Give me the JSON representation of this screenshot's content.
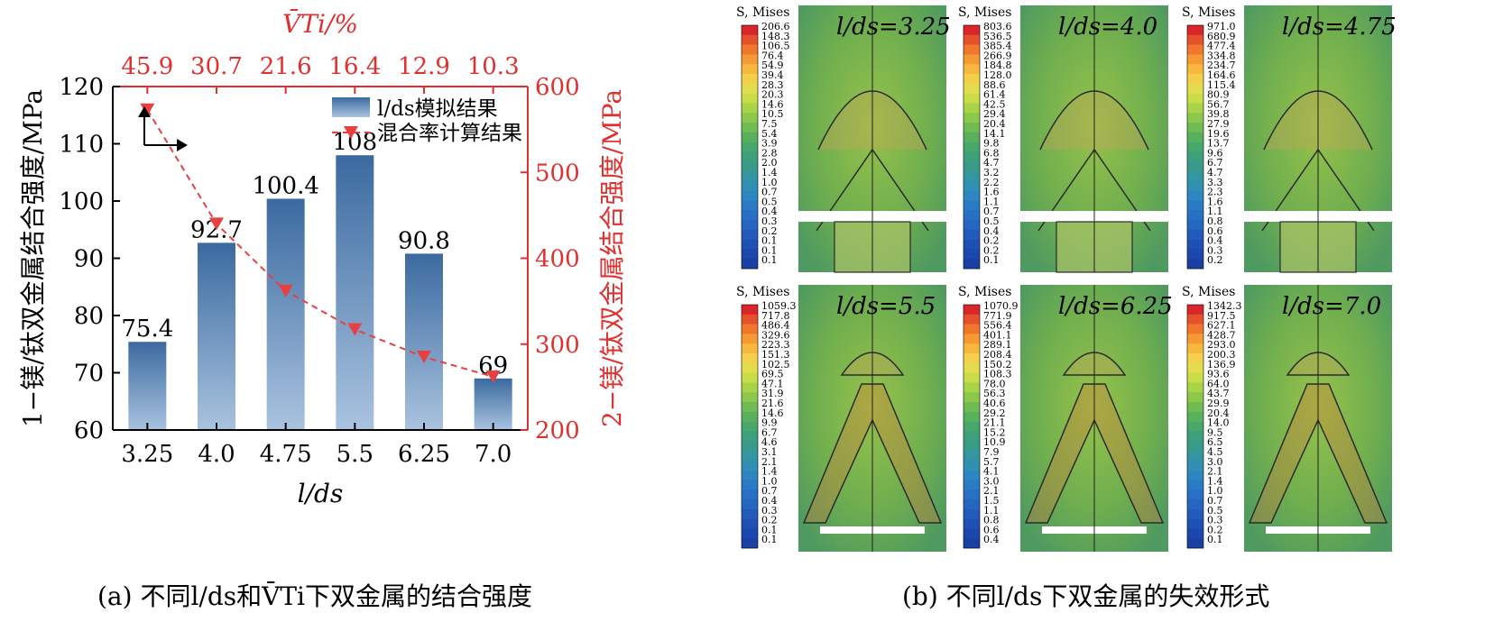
{
  "chart_data": [
    {
      "type": "bar",
      "categories": [
        "3.25",
        "4.0",
        "4.75",
        "5.5",
        "6.25",
        "7.0"
      ],
      "series": [
        {
          "name": "l/ds模拟结果",
          "axis": "left",
          "values": [
            75.4,
            92.7,
            100.4,
            108,
            90.8,
            69
          ],
          "data_labels": [
            "75.4",
            "92.7",
            "100.4",
            "108",
            "90.8",
            "69"
          ]
        },
        {
          "name": "混合率计算结果",
          "axis": "right",
          "type": "line",
          "style": "dashed",
          "marker": "triangle-down",
          "values": [
            573,
            440,
            362,
            317,
            285,
            262
          ]
        }
      ],
      "xlabel": "l/ds",
      "ylabel_left": "1−镁/钛双金属结合强度/MPa",
      "ylabel_right": "2−镁/钛双金属结合强度/MPa",
      "ylim_left": [
        60,
        120
      ],
      "yticks_left": [
        "60",
        "70",
        "80",
        "90",
        "100",
        "110",
        "120"
      ],
      "ylim_right": [
        200,
        600
      ],
      "yticks_right": [
        "200",
        "300",
        "400",
        "500",
        "600"
      ],
      "top_axis_label": "V̄Ti/%",
      "top_ticks": [
        "45.9",
        "30.7",
        "21.6",
        "16.4",
        "12.9",
        "10.3"
      ],
      "legend_position": "top-right",
      "colors": {
        "bar": "#3b6aa0",
        "bar_light": "#a9c3df",
        "line": "#e84040",
        "right_axis": "#e03030"
      }
    }
  ],
  "fem_panels": [
    {
      "label": "l/ds=3.25",
      "legend_title": "S, Mises",
      "legend_values": [
        "206.6",
        "148.3",
        "106.5",
        "76.4",
        "54.9",
        "39.4",
        "28.3",
        "20.3",
        "14.6",
        "10.5",
        "7.5",
        "5.4",
        "3.9",
        "2.8",
        "2.0",
        "1.4",
        "1.0",
        "0.7",
        "0.5",
        "0.4",
        "0.3",
        "0.2",
        "0.1",
        "0.1",
        "0.1"
      ],
      "variant": "round"
    },
    {
      "label": "l/ds=4.0",
      "legend_title": "S, Mises",
      "legend_values": [
        "803.6",
        "536.5",
        "385.4",
        "266.9",
        "184.8",
        "128.0",
        "88.6",
        "61.4",
        "42.5",
        "29.4",
        "20.4",
        "14.1",
        "9.8",
        "6.8",
        "4.7",
        "3.2",
        "2.2",
        "1.6",
        "1.1",
        "0.7",
        "0.5",
        "0.4",
        "0.2",
        "0.2",
        "0.1"
      ],
      "variant": "round"
    },
    {
      "label": "l/ds=4.75",
      "legend_title": "S, Mises",
      "legend_values": [
        "971.0",
        "680.9",
        "477.4",
        "334.8",
        "234.7",
        "164.6",
        "115.4",
        "80.9",
        "56.7",
        "39.8",
        "27.9",
        "19.6",
        "13.7",
        "9.6",
        "6.7",
        "4.7",
        "3.3",
        "2.3",
        "1.6",
        "1.1",
        "0.8",
        "0.6",
        "0.4",
        "0.3",
        "0.2"
      ],
      "variant": "round"
    },
    {
      "label": "l/ds=5.5",
      "legend_title": "S, Mises",
      "legend_values": [
        "1059.3",
        "717.8",
        "486.4",
        "329.6",
        "223.3",
        "151.3",
        "102.5",
        "69.5",
        "47.1",
        "31.9",
        "21.6",
        "14.6",
        "9.9",
        "6.7",
        "4.6",
        "3.1",
        "2.1",
        "1.4",
        "1.0",
        "0.7",
        "0.4",
        "0.3",
        "0.2",
        "0.1",
        "0.1"
      ],
      "variant": "tall"
    },
    {
      "label": "l/ds=6.25",
      "legend_title": "S, Mises",
      "legend_values": [
        "1070.9",
        "771.9",
        "556.4",
        "401.1",
        "289.1",
        "208.4",
        "150.2",
        "108.3",
        "78.0",
        "56.3",
        "40.6",
        "29.2",
        "21.1",
        "15.2",
        "10.9",
        "7.9",
        "5.7",
        "4.1",
        "3.0",
        "2.1",
        "1.5",
        "1.1",
        "0.8",
        "0.6",
        "0.4"
      ],
      "variant": "tall"
    },
    {
      "label": "l/ds=7.0",
      "legend_title": "S, Mises",
      "legend_values": [
        "1342.3",
        "917.5",
        "627.1",
        "428.7",
        "293.0",
        "200.3",
        "136.9",
        "93.6",
        "64.0",
        "43.7",
        "29.9",
        "20.4",
        "14.0",
        "9.5",
        "6.5",
        "4.5",
        "3.0",
        "2.1",
        "1.4",
        "1.0",
        "0.7",
        "0.5",
        "0.3",
        "0.2",
        "0.1"
      ],
      "variant": "tall"
    }
  ],
  "captions": {
    "a": "(a) 不同l/ds和V̄Ti下双金属的结合强度",
    "b": "(b) 不同l/ds下双金属的失效形式"
  }
}
